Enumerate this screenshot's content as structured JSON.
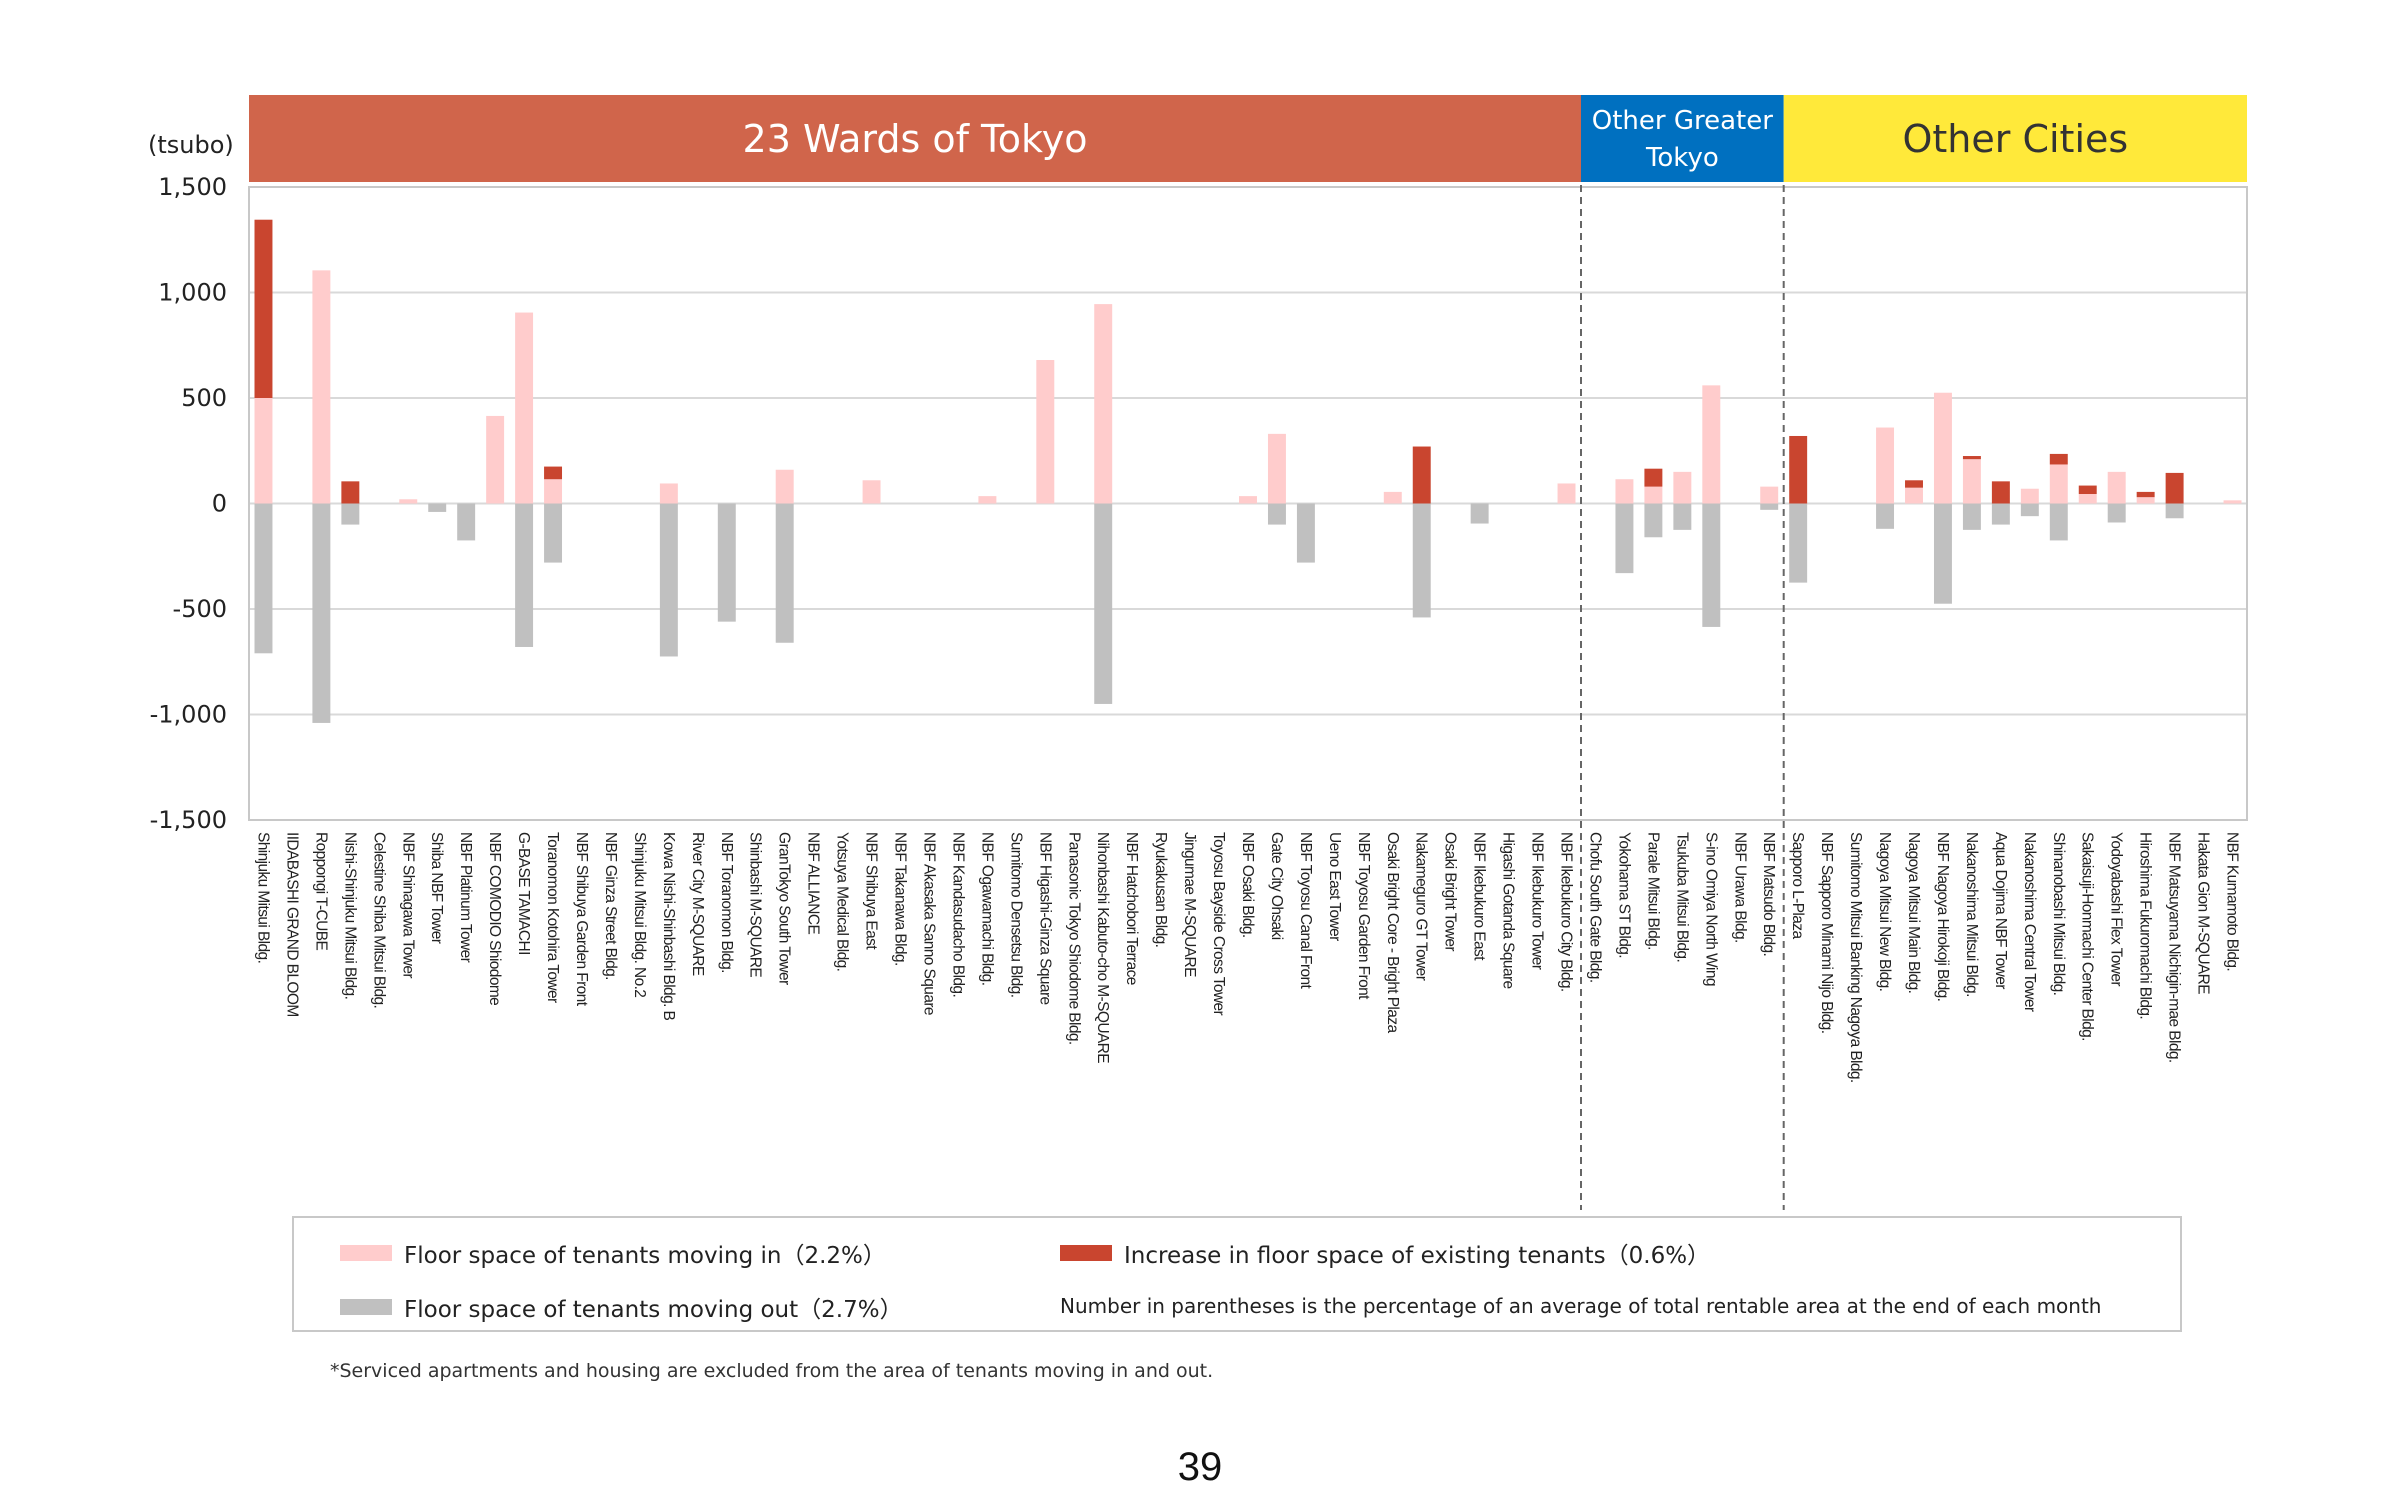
{
  "chart_data": {
    "type": "bar",
    "unit_label": "(tsubo)",
    "ylim": [
      -1500,
      1500
    ],
    "yticks": [
      1500,
      1000,
      500,
      0,
      -500,
      -1000,
      -1500
    ],
    "ytick_labels": [
      "1,500",
      "1,000",
      "500",
      "0",
      "-500",
      "-1,000",
      "-1,500"
    ],
    "grid": true,
    "regions": [
      {
        "label": "23 Wards of Tokyo",
        "label_lines": [
          "23 Wards of Tokyo"
        ],
        "start": 0,
        "end": 46,
        "color": "#d0654b",
        "text_color": "#ffffff"
      },
      {
        "label": "Other Greater Tokyo",
        "label_lines": [
          "Other Greater",
          "Tokyo"
        ],
        "start": 46,
        "end": 53,
        "color": "#0070c0",
        "text_color": "#ffffff"
      },
      {
        "label": "Other Cities",
        "label_lines": [
          "Other Cities"
        ],
        "start": 53,
        "end": 69,
        "color": "#ffe93a",
        "text_color": "#333333"
      }
    ],
    "categories": [
      "Shinjuku Mitsui Bldg.",
      "IIDABASHI GRAND BLOOM",
      "Roppongi T-CUBE",
      "Nishi-Shinjuku Mitsui Bldg.",
      "Celestine Shiba Mitsui Bldg.",
      "NBF Shinagawa Tower",
      "Shiba NBF Tower",
      "NBF Platinum Tower",
      "NBF COMODIO Shiodome",
      "G-BASE TAMACHI",
      "Toranomon Kotohira Tower",
      "NBF Shibuya Garden Front",
      "NBF Ginza Street Bldg.",
      "Shinjuku Mitsui Bldg. No.2",
      "Kowa Nishi-Shinbashi Bldg. B",
      "River City M-SQUARE",
      "NBF Toranomon Bldg.",
      "Shinbashi M-SQUARE",
      "GranTokyo South Tower",
      "NBF ALLIANCE",
      "Yotsuya Medical Bldg.",
      "NBF Shibuya East",
      "NBF Takanawa Bldg.",
      "NBF Akasaka Sanno Square",
      "NBF Kandasudacho Bldg.",
      "NBF Ogawamachi Bldg.",
      "Sumitomo Densetsu Bldg.",
      "NBF Higashi-Ginza Square",
      "Panasonic Tokyo Shiodome Bldg.",
      "Nihonbashi Kabuto-cho M-SQUARE",
      "NBF Hatchobori Terrace",
      "Ryukakusan Bldg.",
      "Jingumae M-SQUARE",
      "Toyosu Bayside Cross Tower",
      "NBF Osaki Bldg.",
      "Gate City Ohsaki",
      "NBF Toyosu Canal Front",
      "Ueno East Tower",
      "NBF Toyosu Garden Front",
      "Osaki Bright Core - Bright Plaza",
      "Nakameguro GT Tower",
      "Osaki Bright Tower",
      "NBF Ikebukuro East",
      "Higashi Gotanda Square",
      "NBF Ikebukuro Tower",
      "NBF Ikebukuro City Bldg.",
      "Chofu South Gate Bldg.",
      "Yokohama ST Bldg.",
      "Parale Mitsui Bldg.",
      "Tsukuba Mitsui Bldg.",
      "S-ino Omiya North Wing",
      "NBF Urawa Bldg.",
      "NBF Matsudo Bldg.",
      "Sapporo L-Plaza",
      "NBF Sapporo Minami Nijo Bldg.",
      "Sumitomo Mitsui Banking Nagoya Bldg.",
      "Nagoya Mitsui New Bldg.",
      "Nagoya Mitsui Main Bldg.",
      "NBF Nagoya Hirokoji Bldg.",
      "Nakanoshima Mitsui Bldg.",
      "Aqua Dojima NBF Tower",
      "Nakanoshima Central Tower",
      "Shinanobashi Mitsui Bldg.",
      "Sakaisuji-Honmachi Center Bldg.",
      "Yodoyabashi Flex Tower",
      "Hiroshima Fukuromachi Bldg.",
      "NBF Matsuyama Nichigin-mae Bldg.",
      "Hakata Gion M-SQUARE",
      "NBF Kumamoto Bldg."
    ],
    "series": [
      {
        "name": "Floor space of tenants moving in（2.2%）",
        "color": "#ffcccc",
        "values": [
          500,
          0,
          1105,
          0,
          0,
          20,
          0,
          0,
          415,
          905,
          115,
          0,
          0,
          0,
          95,
          0,
          0,
          0,
          160,
          0,
          0,
          110,
          0,
          0,
          0,
          35,
          0,
          680,
          0,
          945,
          0,
          0,
          0,
          0,
          35,
          330,
          0,
          0,
          0,
          55,
          0,
          0,
          0,
          0,
          0,
          95,
          0,
          115,
          80,
          150,
          560,
          0,
          80,
          0,
          0,
          0,
          360,
          75,
          525,
          210,
          0,
          70,
          185,
          45,
          150,
          30,
          0,
          0,
          15
        ]
      },
      {
        "name": "Increase in floor space of existing tenants（0.6%）",
        "color": "#c9452f",
        "values": [
          845,
          0,
          0,
          105,
          0,
          0,
          0,
          0,
          0,
          0,
          60,
          0,
          0,
          0,
          0,
          0,
          0,
          0,
          0,
          0,
          0,
          0,
          0,
          0,
          0,
          0,
          0,
          0,
          0,
          0,
          0,
          0,
          0,
          0,
          0,
          0,
          0,
          0,
          0,
          0,
          270,
          0,
          0,
          0,
          0,
          0,
          0,
          0,
          85,
          0,
          0,
          0,
          0,
          320,
          0,
          0,
          0,
          35,
          0,
          15,
          105,
          0,
          50,
          40,
          0,
          25,
          145,
          0,
          0
        ]
      },
      {
        "name": "Floor space of tenants moving out（2.7%）",
        "color": "#c0c0c0",
        "values": [
          -710,
          0,
          -1040,
          -100,
          0,
          0,
          -40,
          -175,
          0,
          -680,
          -280,
          0,
          0,
          0,
          -725,
          0,
          -560,
          0,
          -660,
          0,
          0,
          0,
          0,
          0,
          0,
          0,
          0,
          0,
          0,
          -950,
          0,
          0,
          0,
          0,
          0,
          -100,
          -280,
          0,
          0,
          0,
          -540,
          0,
          -95,
          0,
          0,
          0,
          0,
          -330,
          -160,
          -125,
          -585,
          0,
          -30,
          -375,
          0,
          0,
          -120,
          0,
          -475,
          -125,
          -100,
          -60,
          -175,
          0,
          -90,
          0,
          -70,
          0,
          0
        ]
      }
    ]
  },
  "legend": {
    "moving_in": "Floor space of tenants moving in（2.2%）",
    "increase": "Increase in floor space of existing tenants（0.6%）",
    "moving_out": "Floor space of tenants moving out（2.7%）",
    "note": "Number in parentheses is the percentage of an average of total rentable area at the end of each month"
  },
  "footnote": "*Serviced apartments and housing are excluded from the area of tenants moving in and out.",
  "page_number": "39"
}
